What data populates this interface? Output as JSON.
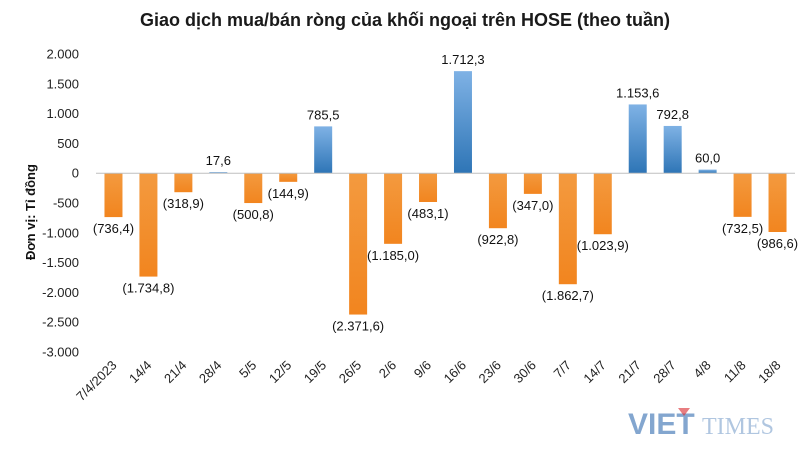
{
  "title": "Giao dịch mua/bán ròng của khối ngoại trên HOSE (theo tuần)",
  "watermark": {
    "part1": "VIET",
    "part2": "TIMES"
  },
  "colors": {
    "positive": "#5b9bd5",
    "positive_dark": "#2e75b6",
    "negative": "#f28c28",
    "watermark_blue": "#1f5fa8",
    "watermark_red": "#d9262c"
  },
  "chart_data": {
    "type": "bar",
    "title": "Giao dịch mua/bán ròng của khối ngoại trên HOSE (theo tuần)",
    "ylabel": "Đơn vị: Tỉ đồng",
    "xlabel": "",
    "ylim": [
      -3000,
      2000
    ],
    "yticks": [
      2000,
      1500,
      1000,
      500,
      0,
      -500,
      -1000,
      -1500,
      -2000,
      -2500,
      -3000
    ],
    "ytick_labels": [
      "2.000",
      "1.500",
      "1.000",
      "500",
      "0",
      "-500",
      "-1.000",
      "-1.500",
      "-2.000",
      "-2.500",
      "-3.000"
    ],
    "grid": false,
    "categories": [
      "7/4/2023",
      "14/4",
      "21/4",
      "28/4",
      "5/5",
      "12/5",
      "19/5",
      "26/5",
      "2/6",
      "9/6",
      "16/6",
      "23/6",
      "30/6",
      "7/7",
      "14/7",
      "21/7",
      "28/7",
      "4/8",
      "11/8",
      "18/8"
    ],
    "values": [
      -736.4,
      -1734.8,
      -318.9,
      17.6,
      -500.8,
      -144.9,
      785.5,
      -2371.6,
      -1185.0,
      -483.1,
      1712.3,
      -922.8,
      -347.0,
      -1862.7,
      -1023.9,
      1153.6,
      792.8,
      60.0,
      -732.5,
      -986.6
    ],
    "data_labels": [
      "(736,4)",
      "(1.734,8)",
      "(318,9)",
      "17,6",
      "(500,8)",
      "(144,9)",
      "785,5",
      "(2.371,6)",
      "(1.185,0)",
      "(483,1)",
      "1.712,3",
      "(922,8)",
      "(347,0)",
      "(1.862,7)",
      "(1.023,9)",
      "1.153,6",
      "792,8",
      "60,0",
      "(732,5)",
      "(986,6)"
    ]
  }
}
